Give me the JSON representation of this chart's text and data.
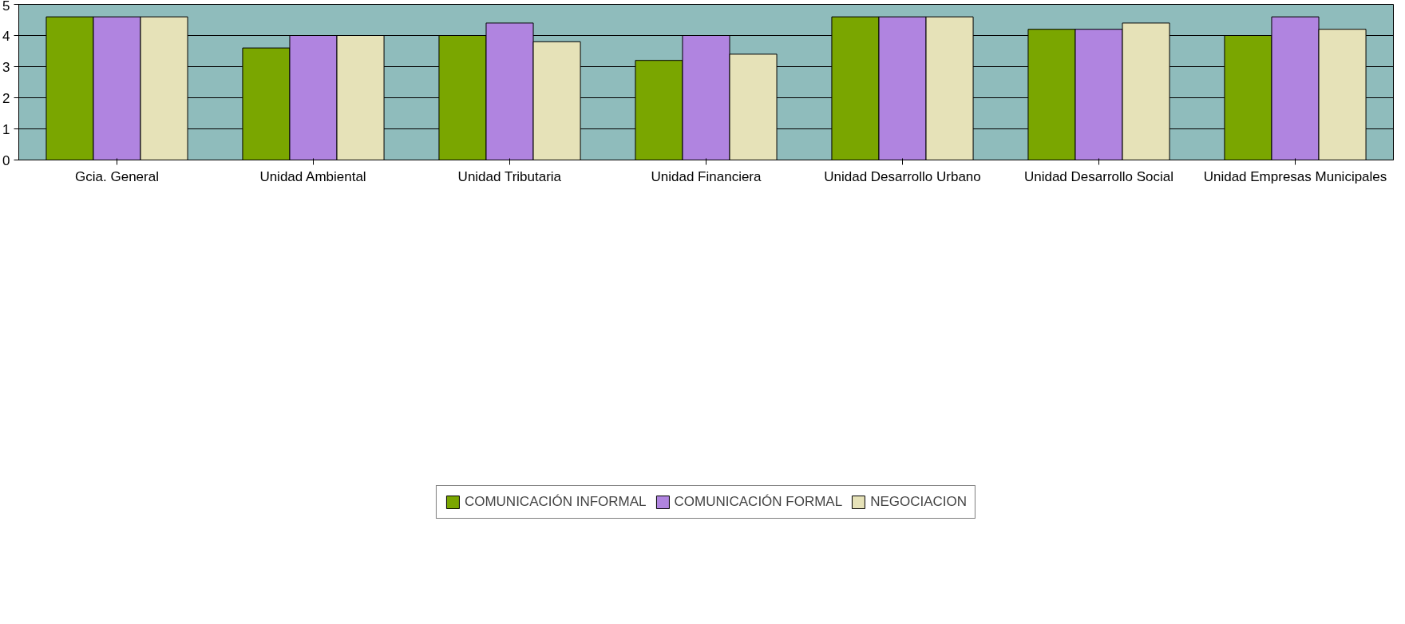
{
  "chart_data": {
    "type": "bar",
    "categories": [
      "Gcia. General",
      "Unidad Ambiental",
      "Unidad Tributaria",
      "Unidad Financiera",
      "Unidad Desarrollo Urbano",
      "Unidad Desarrollo Social",
      "Unidad Empresas Municipales"
    ],
    "series": [
      {
        "name": "COMUNICACIÓN INFORMAL",
        "color": "#7aa600",
        "values": [
          4.6,
          3.6,
          4.0,
          3.2,
          4.6,
          4.2,
          4.0
        ]
      },
      {
        "name": "COMUNICACIÓN FORMAL",
        "color": "#b084e0",
        "values": [
          4.6,
          4.0,
          4.4,
          4.0,
          4.6,
          4.2,
          4.6
        ]
      },
      {
        "name": "NEGOCIACION",
        "color": "#e6e2b8",
        "values": [
          4.6,
          4.0,
          3.8,
          3.4,
          4.6,
          4.4,
          4.2
        ]
      }
    ],
    "ylim": [
      0,
      5
    ],
    "yticks": [
      0,
      1,
      2,
      3,
      4,
      5
    ],
    "grid": "y",
    "legend": "bottom"
  }
}
